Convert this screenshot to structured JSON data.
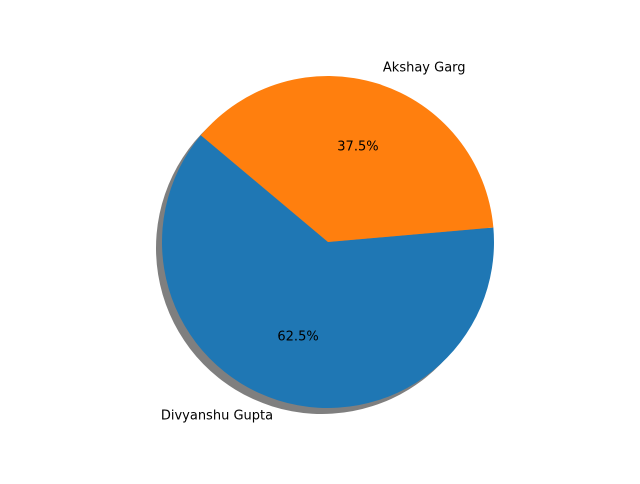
{
  "chart_data": {
    "type": "pie",
    "title": "",
    "shadow": true,
    "start_angle_deg": 140,
    "direction": "counterclockwise",
    "slices": [
      {
        "label": "Divyanshu Gupta",
        "value": 62.5,
        "pct_label": "62.5%",
        "color": "#1f77b4"
      },
      {
        "label": "Akshay Garg",
        "value": 37.5,
        "pct_label": "37.5%",
        "color": "#ff7f0e"
      }
    ]
  }
}
